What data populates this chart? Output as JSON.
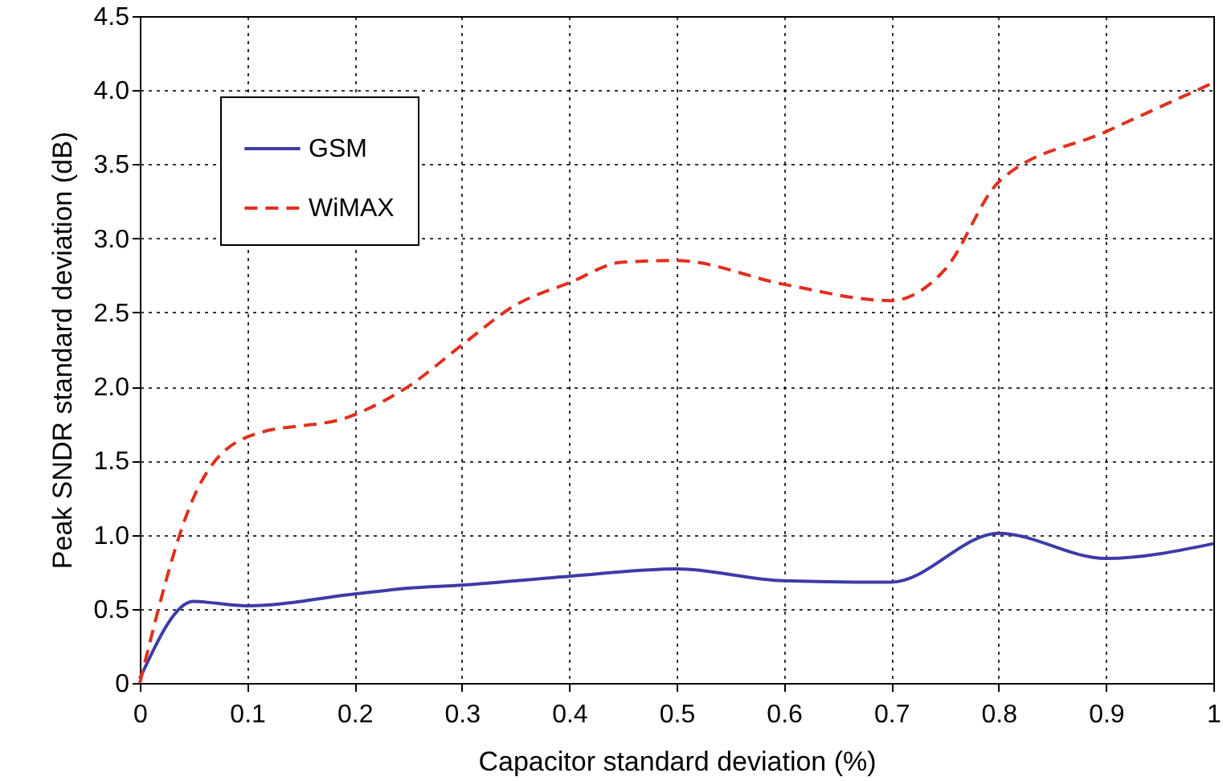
{
  "chart_data": {
    "type": "line",
    "xlabel": "Capacitor standard deviation (%)",
    "ylabel": "Peak SNDR standard deviation (dB)",
    "xlim": [
      0,
      1
    ],
    "xticks": [
      0,
      0.1,
      0.2,
      0.3,
      0.4,
      0.5,
      0.6,
      0.7,
      0.8,
      0.9,
      1
    ],
    "ylim": [
      0,
      4.5
    ],
    "yticks": [
      0,
      {
        "value": 0.5,
        "label": "0.5"
      },
      {
        "value": 1,
        "label": "1.0"
      },
      {
        "value": 1.5,
        "label": "1.5"
      },
      {
        "value": 2,
        "label": "2.0"
      },
      {
        "value": 2.5,
        "label": "2.5"
      },
      {
        "value": 3,
        "label": "3.0"
      },
      {
        "value": 3.5,
        "label": "3.5"
      },
      {
        "value": 4,
        "label": "4.0"
      },
      {
        "value": 4.5,
        "label": "4.5"
      }
    ],
    "grid": true,
    "legend": "top left",
    "series": [
      {
        "name": "GSM",
        "color": "#3c3ca8",
        "line_style": "solid",
        "x": [
          0,
          0.05,
          0.1,
          0.2,
          0.25,
          0.3,
          0.4,
          0.5,
          0.6,
          0.7,
          0.8,
          0.9,
          1
        ],
        "values": [
          0.03,
          0.55,
          0.52,
          0.6,
          0.64,
          0.66,
          0.72,
          0.77,
          0.69,
          0.68,
          1.01,
          0.84,
          0.94
        ]
      },
      {
        "name": "WiMAX",
        "color": "#e0301e",
        "line_style": "dashed",
        "x": [
          0,
          0.05,
          0.1,
          0.2,
          0.25,
          0.3,
          0.35,
          0.4,
          0.45,
          0.5,
          0.6,
          0.7,
          0.75,
          0.8,
          0.9,
          1
        ],
        "values": [
          0,
          1.25,
          1.66,
          1.81,
          2.0,
          2.28,
          2.55,
          2.7,
          2.84,
          2.85,
          2.69,
          2.58,
          2.79,
          3.38,
          3.72,
          4.05
        ]
      }
    ]
  }
}
